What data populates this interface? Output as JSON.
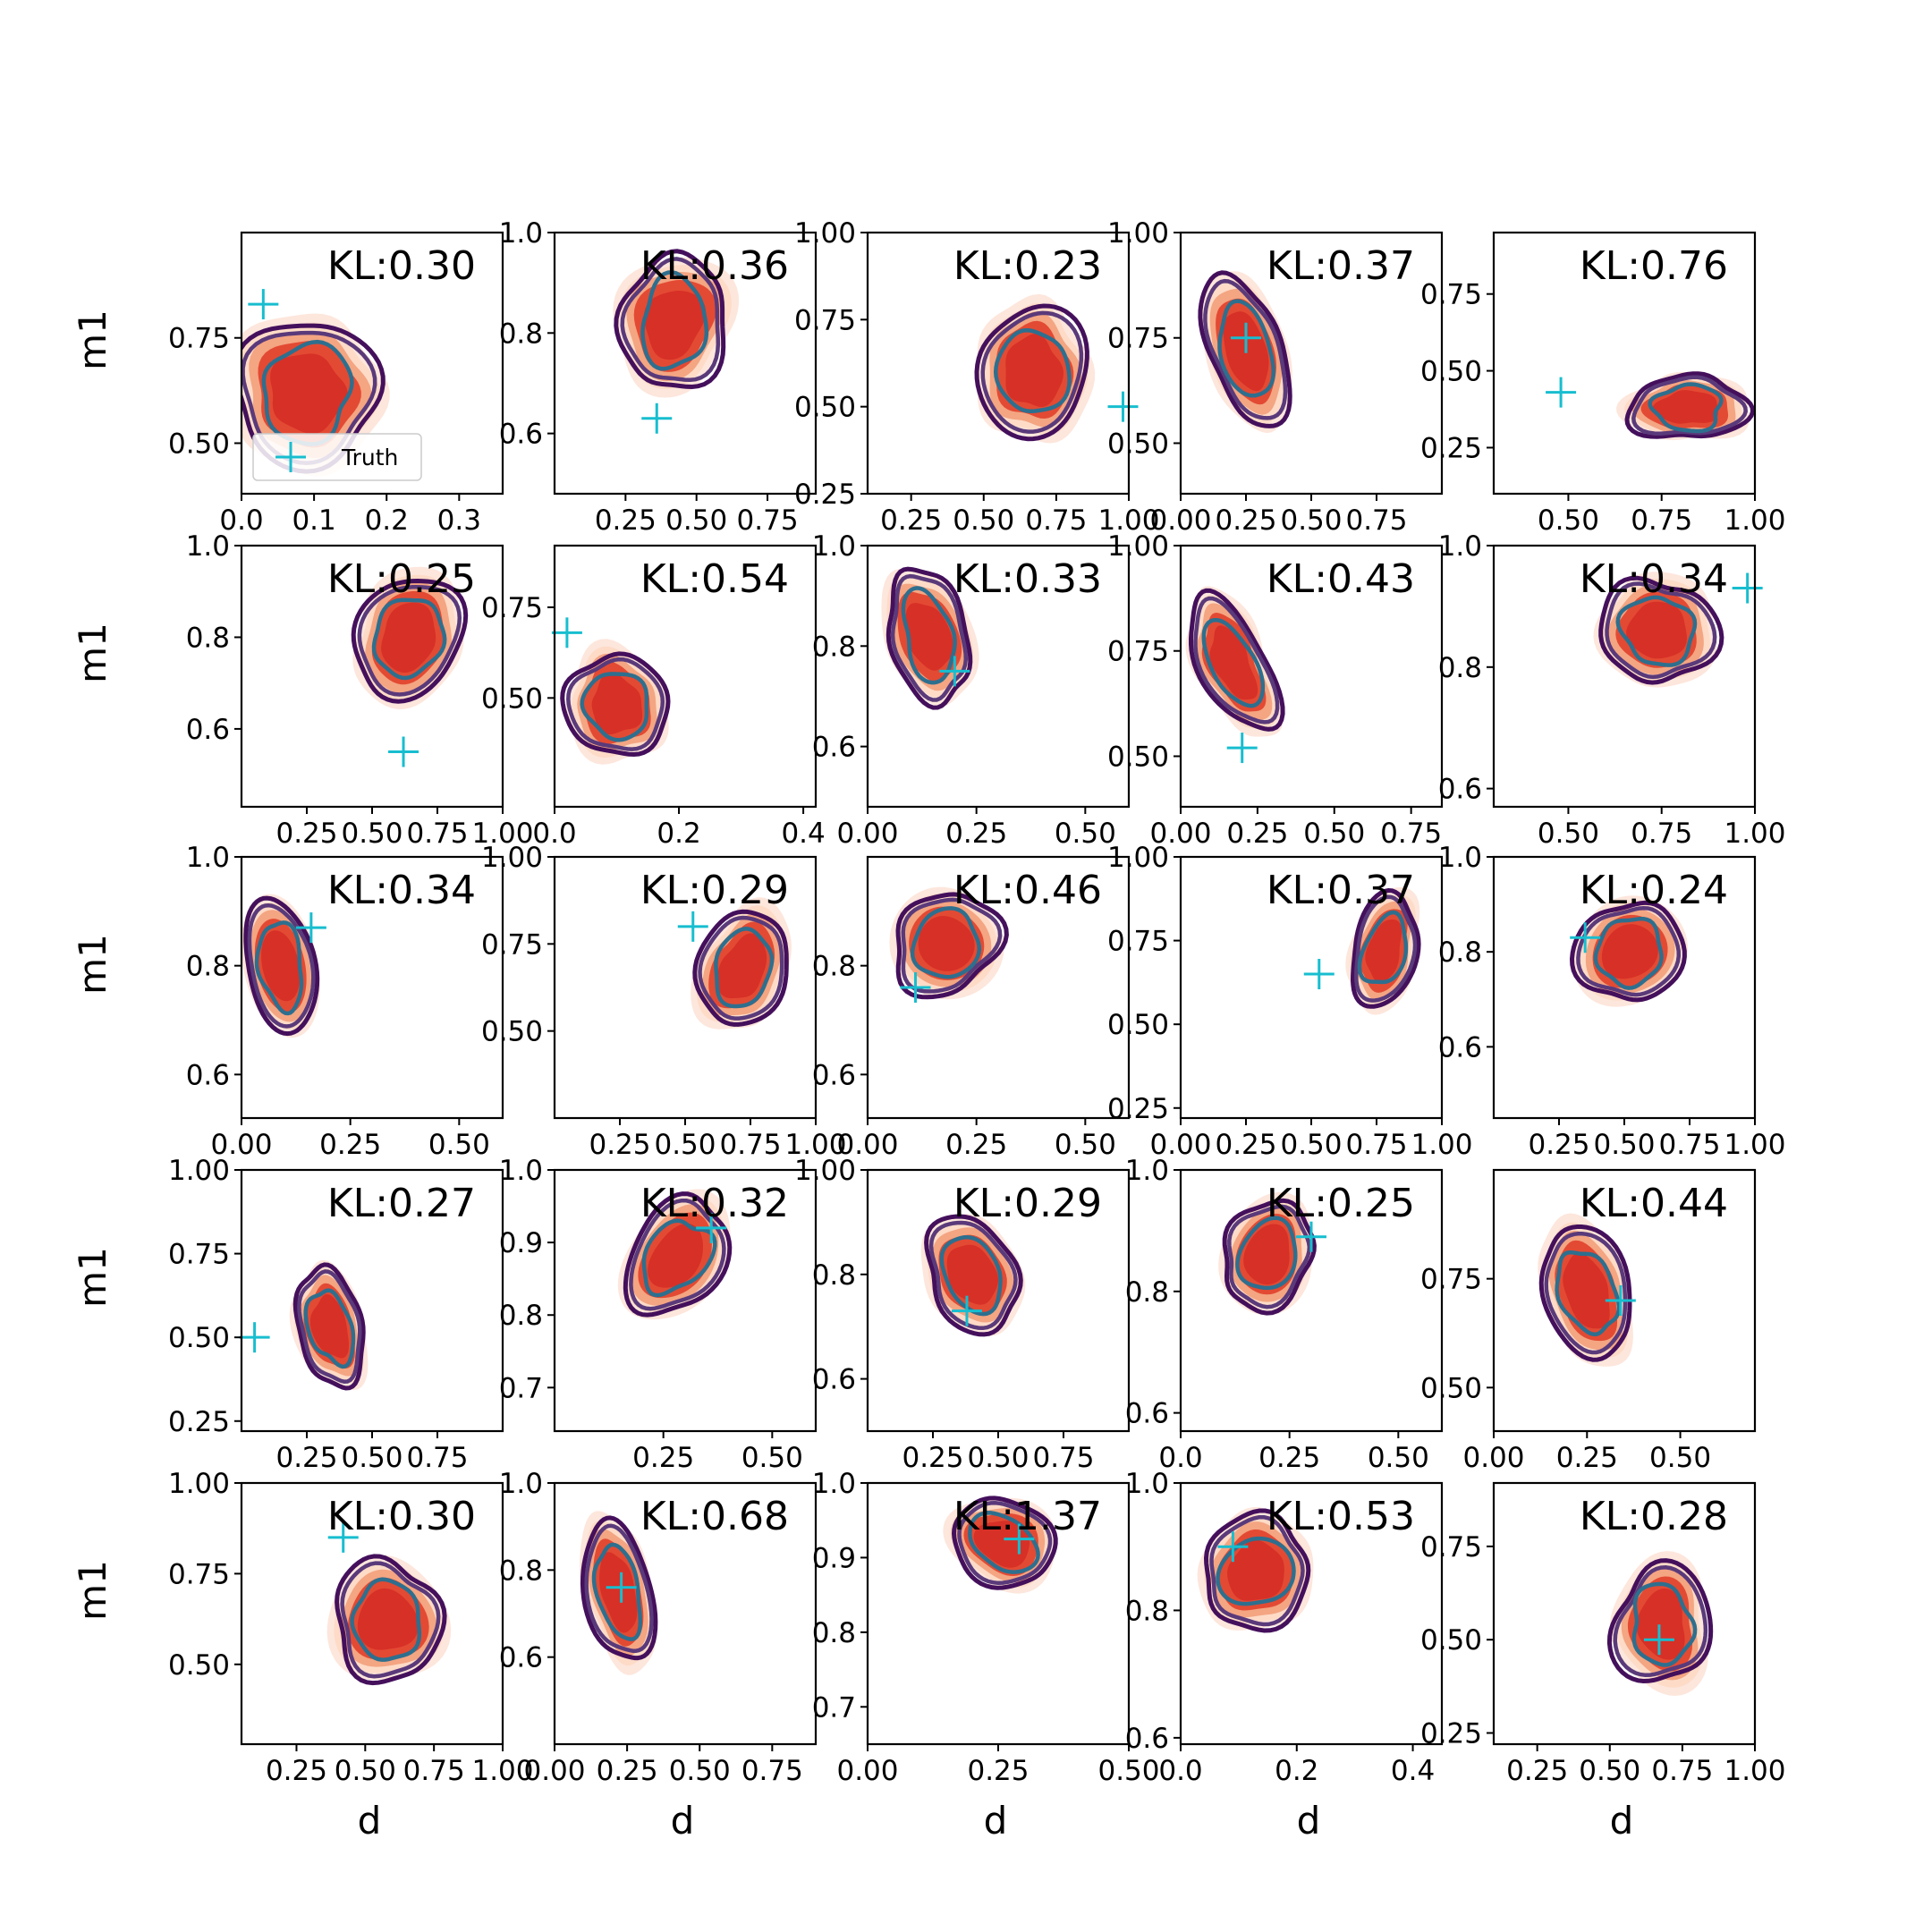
{
  "legend": {
    "label": "Truth",
    "marker": "+"
  },
  "chart_data": {
    "type": "scatter",
    "description_layout": "5x5 grid of 2D density contour plots of m1 vs d",
    "xlabel": "d",
    "ylabel": "m1",
    "colors": {
      "fill_light": "#fddbc7",
      "fill_mid": "#f4a582",
      "fill_core": "#d73027",
      "contour_outer": "#44105c",
      "contour_mid": "#5a3a7a",
      "contour_inner": "#2e6f8e",
      "truth": "#17becf"
    },
    "panels": [
      {
        "kl": "KL:0.30",
        "xlim": [
          0,
          0.36
        ],
        "ylim": [
          0.38,
          1.0
        ],
        "xticks": [
          0.0,
          0.1,
          0.2,
          0.3
        ],
        "xtick_labels": [
          "0.0",
          "0.1",
          "0.2",
          "0.3"
        ],
        "yticks": [
          0.5,
          0.75
        ],
        "ytick_labels": [
          "0.50",
          "0.75"
        ],
        "truth": [
          0.03,
          0.83
        ],
        "center": [
          0.09,
          0.62
        ],
        "spread": [
          0.18,
          0.3
        ],
        "tilt": -0.4
      },
      {
        "kl": "KL:0.36",
        "xlim": [
          0,
          0.92
        ],
        "ylim": [
          0.48,
          1.0
        ],
        "xticks": [
          0.25,
          0.5,
          0.75
        ],
        "xtick_labels": [
          "0.25",
          "0.50",
          "0.75"
        ],
        "yticks": [
          0.6,
          0.8,
          1.0
        ],
        "ytick_labels": [
          "0.6",
          "0.8",
          "1.0"
        ],
        "truth": [
          0.36,
          0.63
        ],
        "center": [
          0.42,
          0.82
        ],
        "spread": [
          0.33,
          0.24
        ],
        "tilt": 0.2
      },
      {
        "kl": "KL:0.23",
        "xlim": [
          0.1,
          1.0
        ],
        "ylim": [
          0.25,
          1.0
        ],
        "xticks": [
          0.25,
          0.5,
          0.75,
          1.0
        ],
        "xtick_labels": [
          "0.25",
          "0.50",
          "0.75",
          "1.00"
        ],
        "yticks": [
          0.25,
          0.5,
          0.75,
          1.0
        ],
        "ytick_labels": [
          "0.25",
          "0.50",
          "0.75",
          "1.00"
        ],
        "truth": [
          0.98,
          0.5
        ],
        "center": [
          0.67,
          0.6
        ],
        "spread": [
          0.33,
          0.34
        ],
        "tilt": 0.0
      },
      {
        "kl": "KL:0.37",
        "xlim": [
          0,
          1.0
        ],
        "ylim": [
          0.38,
          1.0
        ],
        "xticks": [
          0.0,
          0.25,
          0.5,
          0.75
        ],
        "xtick_labels": [
          "0.00",
          "0.25",
          "0.50",
          "0.75"
        ],
        "yticks": [
          0.5,
          0.75,
          1.0
        ],
        "ytick_labels": [
          "0.50",
          "0.75",
          "1.00"
        ],
        "truth": [
          0.25,
          0.75
        ],
        "center": [
          0.25,
          0.72
        ],
        "spread": [
          0.26,
          0.32
        ],
        "tilt": -0.3
      },
      {
        "kl": "KL:0.76",
        "xlim": [
          0.3,
          1.0
        ],
        "ylim": [
          0.1,
          0.95
        ],
        "xticks": [
          0.5,
          0.75,
          1.0
        ],
        "xtick_labels": [
          "0.50",
          "0.75",
          "1.00"
        ],
        "yticks": [
          0.25,
          0.5,
          0.75
        ],
        "ytick_labels": [
          "0.25",
          "0.50",
          "0.75"
        ],
        "truth": [
          0.48,
          0.43
        ],
        "center": [
          0.82,
          0.38
        ],
        "spread": [
          0.26,
          0.2
        ],
        "tilt": 0.0
      },
      {
        "kl": "KL:0.25",
        "xlim": [
          0.0,
          1.0
        ],
        "ylim": [
          0.43,
          1.0
        ],
        "xticks": [
          0.25,
          0.5,
          0.75,
          1.0
        ],
        "xtick_labels": [
          "0.25",
          "0.50",
          "0.75",
          "1.00"
        ],
        "yticks": [
          0.6,
          0.8,
          1.0
        ],
        "ytick_labels": [
          "0.6",
          "0.8",
          "1.0"
        ],
        "truth": [
          0.62,
          0.55
        ],
        "center": [
          0.64,
          0.8
        ],
        "spread": [
          0.36,
          0.24
        ],
        "tilt": 0.5
      },
      {
        "kl": "KL:0.54",
        "xlim": [
          0.0,
          0.42
        ],
        "ylim": [
          0.2,
          0.92
        ],
        "xticks": [
          0.0,
          0.2,
          0.4
        ],
        "xtick_labels": [
          "0.0",
          "0.2",
          "0.4"
        ],
        "yticks": [
          0.5,
          0.75
        ],
        "ytick_labels": [
          "0.50",
          "0.75"
        ],
        "truth": [
          0.02,
          0.68
        ],
        "center": [
          0.1,
          0.48
        ],
        "spread": [
          0.14,
          0.26
        ],
        "tilt": -0.7
      },
      {
        "kl": "KL:0.33",
        "xlim": [
          0,
          0.6
        ],
        "ylim": [
          0.48,
          1.0
        ],
        "xticks": [
          0.0,
          0.25,
          0.5
        ],
        "xtick_labels": [
          "0.00",
          "0.25",
          "0.50"
        ],
        "yticks": [
          0.6,
          0.8,
          1.0
        ],
        "ytick_labels": [
          "0.6",
          "0.8",
          "1.0"
        ],
        "truth": [
          0.2,
          0.75
        ],
        "center": [
          0.14,
          0.82
        ],
        "spread": [
          0.16,
          0.24
        ],
        "tilt": -0.3
      },
      {
        "kl": "KL:0.43",
        "xlim": [
          0,
          0.85
        ],
        "ylim": [
          0.38,
          1.0
        ],
        "xticks": [
          0.0,
          0.25,
          0.5,
          0.75
        ],
        "xtick_labels": [
          "0.00",
          "0.25",
          "0.50",
          "0.75"
        ],
        "yticks": [
          0.5,
          0.75,
          1.0
        ],
        "ytick_labels": [
          "0.50",
          "0.75",
          "1.00"
        ],
        "truth": [
          0.2,
          0.52
        ],
        "center": [
          0.17,
          0.72
        ],
        "spread": [
          0.2,
          0.3
        ],
        "tilt": -0.4
      },
      {
        "kl": "KL:0.34",
        "xlim": [
          0.3,
          1.0
        ],
        "ylim": [
          0.57,
          1.0
        ],
        "xticks": [
          0.5,
          0.75,
          1.0
        ],
        "xtick_labels": [
          "0.50",
          "0.75",
          "1.00"
        ],
        "yticks": [
          0.6,
          0.8,
          1.0
        ],
        "ytick_labels": [
          "0.6",
          "0.8",
          "1.0"
        ],
        "truth": [
          0.98,
          0.93
        ],
        "center": [
          0.74,
          0.86
        ],
        "spread": [
          0.26,
          0.16
        ],
        "tilt": 0.5
      },
      {
        "kl": "KL:0.34",
        "xlim": [
          0.0,
          0.6
        ],
        "ylim": [
          0.52,
          1.0
        ],
        "xticks": [
          0.0,
          0.25,
          0.5
        ],
        "xtick_labels": [
          "0.00",
          "0.25",
          "0.50"
        ],
        "yticks": [
          0.6,
          0.8,
          1.0
        ],
        "ytick_labels": [
          "0.6",
          "0.8",
          "1.0"
        ],
        "truth": [
          0.16,
          0.87
        ],
        "center": [
          0.09,
          0.8
        ],
        "spread": [
          0.14,
          0.22
        ],
        "tilt": -0.2
      },
      {
        "kl": "KL:0.29",
        "xlim": [
          0.0,
          1.0
        ],
        "ylim": [
          0.25,
          1.0
        ],
        "xticks": [
          0.25,
          0.5,
          0.75,
          1.0
        ],
        "xtick_labels": [
          "0.25",
          "0.50",
          "0.75",
          "1.00"
        ],
        "yticks": [
          0.5,
          0.75,
          1.0
        ],
        "ytick_labels": [
          "0.50",
          "0.75",
          "1.00"
        ],
        "truth": [
          0.53,
          0.8
        ],
        "center": [
          0.72,
          0.68
        ],
        "spread": [
          0.3,
          0.3
        ],
        "tilt": 0.3
      },
      {
        "kl": "KL:0.46",
        "xlim": [
          0,
          0.6
        ],
        "ylim": [
          0.52,
          1.0
        ],
        "xticks": [
          0.0,
          0.25,
          0.5
        ],
        "xtick_labels": [
          "0.00",
          "0.25",
          "0.50"
        ],
        "yticks": [
          0.6,
          0.8
        ],
        "ytick_labels": [
          "0.6",
          "0.8"
        ],
        "truth": [
          0.11,
          0.76
        ],
        "center": [
          0.18,
          0.84
        ],
        "spread": [
          0.2,
          0.18
        ],
        "tilt": 0.6
      },
      {
        "kl": "KL:0.37",
        "xlim": [
          0.0,
          1.0
        ],
        "ylim": [
          0.22,
          1.0
        ],
        "xticks": [
          0.0,
          0.25,
          0.5,
          0.75,
          1.0
        ],
        "xtick_labels": [
          "0.00",
          "0.25",
          "0.50",
          "0.75",
          "1.00"
        ],
        "yticks": [
          0.25,
          0.5,
          0.75,
          1.0
        ],
        "ytick_labels": [
          "0.25",
          "0.50",
          "0.75",
          "1.00"
        ],
        "truth": [
          0.53,
          0.65
        ],
        "center": [
          0.78,
          0.72
        ],
        "spread": [
          0.22,
          0.3
        ],
        "tilt": 0.3
      },
      {
        "kl": "KL:0.24",
        "xlim": [
          0.0,
          1.0
        ],
        "ylim": [
          0.45,
          1.0
        ],
        "xticks": [
          0.25,
          0.5,
          0.75,
          1.0
        ],
        "xtick_labels": [
          "0.25",
          "0.50",
          "0.75",
          "1.00"
        ],
        "yticks": [
          0.6,
          0.8,
          1.0
        ],
        "ytick_labels": [
          "0.6",
          "0.8",
          "1.0"
        ],
        "truth": [
          0.35,
          0.83
        ],
        "center": [
          0.52,
          0.8
        ],
        "spread": [
          0.34,
          0.2
        ],
        "tilt": 0.4
      },
      {
        "kl": "KL:0.27",
        "xlim": [
          0.0,
          1.0
        ],
        "ylim": [
          0.22,
          1.0
        ],
        "xticks": [
          0.25,
          0.5,
          0.75
        ],
        "xtick_labels": [
          "0.25",
          "0.50",
          "0.75"
        ],
        "yticks": [
          0.25,
          0.5,
          0.75,
          1.0
        ],
        "ytick_labels": [
          "0.25",
          "0.50",
          "0.75",
          "1.00"
        ],
        "truth": [
          0.05,
          0.5
        ],
        "center": [
          0.34,
          0.53
        ],
        "spread": [
          0.22,
          0.32
        ],
        "tilt": -0.2
      },
      {
        "kl": "KL:0.32",
        "xlim": [
          0,
          0.6
        ],
        "ylim": [
          0.64,
          1.0
        ],
        "xticks": [
          0.25,
          0.5
        ],
        "xtick_labels": [
          "0.25",
          "0.50"
        ],
        "yticks": [
          0.7,
          0.8,
          0.9,
          1.0
        ],
        "ytick_labels": [
          "0.7",
          "0.8",
          "0.9",
          "1.0"
        ],
        "truth": [
          0.36,
          0.92
        ],
        "center": [
          0.28,
          0.88
        ],
        "spread": [
          0.18,
          0.16
        ],
        "tilt": 0.6
      },
      {
        "kl": "KL:0.29",
        "xlim": [
          0.0,
          1.0
        ],
        "ylim": [
          0.5,
          1.0
        ],
        "xticks": [
          0.25,
          0.5,
          0.75
        ],
        "xtick_labels": [
          "0.25",
          "0.50",
          "0.75"
        ],
        "yticks": [
          0.6,
          0.8,
          1.0
        ],
        "ytick_labels": [
          "0.6",
          "0.8",
          "1.00"
        ],
        "truth": [
          0.38,
          0.73
        ],
        "center": [
          0.4,
          0.8
        ],
        "spread": [
          0.3,
          0.2
        ],
        "tilt": -0.5
      },
      {
        "kl": "KL:0.25",
        "xlim": [
          0,
          0.6
        ],
        "ylim": [
          0.57,
          1.0
        ],
        "xticks": [
          0.0,
          0.25,
          0.5
        ],
        "xtick_labels": [
          "0.0",
          "0.25",
          "0.50"
        ],
        "yticks": [
          0.6,
          0.8,
          1.0
        ],
        "ytick_labels": [
          "0.6",
          "0.8",
          "1.0"
        ],
        "truth": [
          0.3,
          0.89
        ],
        "center": [
          0.2,
          0.86
        ],
        "spread": [
          0.18,
          0.16
        ],
        "tilt": 0.6
      },
      {
        "kl": "KL:0.44",
        "xlim": [
          0.0,
          0.7
        ],
        "ylim": [
          0.4,
          1.0
        ],
        "xticks": [
          0.0,
          0.25,
          0.5
        ],
        "xtick_labels": [
          "0.00",
          "0.25",
          "0.50"
        ],
        "yticks": [
          0.5,
          0.75
        ],
        "ytick_labels": [
          "0.50",
          "0.75"
        ],
        "truth": [
          0.34,
          0.7
        ],
        "center": [
          0.25,
          0.72
        ],
        "spread": [
          0.2,
          0.28
        ],
        "tilt": -0.4
      },
      {
        "kl": "KL:0.30",
        "xlim": [
          0.05,
          1.0
        ],
        "ylim": [
          0.28,
          1.0
        ],
        "xticks": [
          0.25,
          0.5,
          0.75,
          1.0
        ],
        "xtick_labels": [
          "0.25",
          "0.50",
          "0.75",
          "1.00"
        ],
        "yticks": [
          0.5,
          0.75,
          1.0
        ],
        "ytick_labels": [
          "0.50",
          "0.75",
          "1.00"
        ],
        "truth": [
          0.42,
          0.85
        ],
        "center": [
          0.58,
          0.62
        ],
        "spread": [
          0.34,
          0.3
        ],
        "tilt": -0.2
      },
      {
        "kl": "KL:0.68",
        "xlim": [
          0.0,
          0.9
        ],
        "ylim": [
          0.4,
          1.0
        ],
        "xticks": [
          0.0,
          0.25,
          0.5,
          0.75
        ],
        "xtick_labels": [
          "0.00",
          "0.25",
          "0.50",
          "0.75"
        ],
        "yticks": [
          0.6,
          0.8,
          1.0
        ],
        "ytick_labels": [
          "0.6",
          "0.8",
          "1.0"
        ],
        "truth": [
          0.23,
          0.76
        ],
        "center": [
          0.22,
          0.75
        ],
        "spread": [
          0.2,
          0.3
        ],
        "tilt": -0.2
      },
      {
        "kl": "KL:1.37",
        "xlim": [
          0.0,
          0.5
        ],
        "ylim": [
          0.65,
          1.0
        ],
        "xticks": [
          0.0,
          0.25,
          0.5
        ],
        "xtick_labels": [
          "0.00",
          "0.25",
          "0.50"
        ],
        "yticks": [
          0.7,
          0.8,
          0.9,
          1.0
        ],
        "ytick_labels": [
          "0.7",
          "0.8",
          "0.9",
          "1.0"
        ],
        "truth": [
          0.29,
          0.925
        ],
        "center": [
          0.26,
          0.92
        ],
        "spread": [
          0.18,
          0.1
        ],
        "tilt": 0.5
      },
      {
        "kl": "KL:0.53",
        "xlim": [
          0.0,
          0.45
        ],
        "ylim": [
          0.59,
          1.0
        ],
        "xticks": [
          0.0,
          0.2,
          0.4
        ],
        "xtick_labels": [
          "0.0",
          "0.2",
          "0.4"
        ],
        "yticks": [
          0.6,
          0.8,
          1.0
        ],
        "ytick_labels": [
          "0.6",
          "0.8",
          "1.0"
        ],
        "truth": [
          0.09,
          0.9
        ],
        "center": [
          0.13,
          0.86
        ],
        "spread": [
          0.16,
          0.16
        ],
        "tilt": 0.6
      },
      {
        "kl": "KL:0.28",
        "xlim": [
          0.1,
          1.0
        ],
        "ylim": [
          0.22,
          0.92
        ],
        "xticks": [
          0.25,
          0.5,
          0.75,
          1.0
        ],
        "xtick_labels": [
          "0.25",
          "0.50",
          "0.75",
          "1.00"
        ],
        "yticks": [
          0.25,
          0.5,
          0.75
        ],
        "ytick_labels": [
          "0.25",
          "0.50",
          "0.75"
        ],
        "truth": [
          0.67,
          0.5
        ],
        "center": [
          0.68,
          0.54
        ],
        "spread": [
          0.3,
          0.28
        ],
        "tilt": -0.1
      }
    ]
  }
}
